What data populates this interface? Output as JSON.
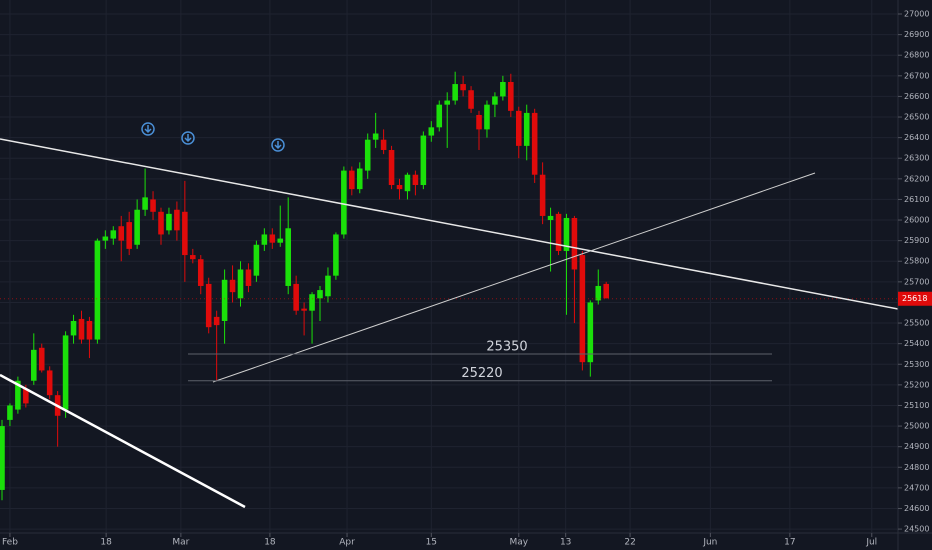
{
  "chart_data": {
    "type": "candlestick",
    "up_color": "#1be00a",
    "down_color": "#e00b0b",
    "x": [
      0,
      1,
      2,
      3,
      4,
      5,
      6,
      7,
      8,
      9,
      10,
      11,
      12,
      13,
      14,
      15,
      16,
      17,
      18,
      19,
      20,
      21,
      22,
      23,
      24,
      25,
      26,
      27,
      28,
      29,
      30,
      31,
      32,
      33,
      34,
      35,
      36,
      37,
      38,
      39,
      40,
      41,
      42,
      43,
      44,
      45,
      46,
      47,
      48,
      49,
      50,
      51,
      52,
      53,
      54,
      55,
      56,
      57,
      58,
      59,
      60,
      61,
      62,
      63,
      64,
      65,
      66,
      67,
      68,
      69,
      70,
      71,
      72,
      73,
      74,
      75,
      76
    ],
    "open": [
      24690,
      25030,
      25080,
      25180,
      25220,
      25380,
      25270,
      25150,
      25080,
      25440,
      25520,
      25510,
      25420,
      25900,
      25910,
      25970,
      25990,
      25880,
      26050,
      26100,
      26040,
      25950,
      26050,
      26040,
      25830,
      25810,
      25690,
      25530,
      25510,
      25710,
      25620,
      25760,
      25730,
      25880,
      25930,
      25890,
      25680,
      25690,
      25570,
      25560,
      25620,
      25630,
      25730,
      25930,
      26240,
      26150,
      26240,
      26390,
      26390,
      26340,
      26170,
      26140,
      26220,
      26170,
      26410,
      26450,
      26560,
      26580,
      26660,
      26630,
      26510,
      26440,
      26560,
      26600,
      26670,
      26530,
      26360,
      26520,
      26220,
      26000,
      26030,
      25850,
      26010,
      25830,
      25310,
      25610,
      25690
    ],
    "high": [
      25030,
      25110,
      25240,
      25200,
      25450,
      25400,
      25290,
      25170,
      25460,
      25540,
      25560,
      25530,
      25910,
      25950,
      25970,
      26020,
      26040,
      26100,
      26250,
      26140,
      26060,
      26060,
      26090,
      26190,
      25860,
      25830,
      25720,
      25560,
      25760,
      25780,
      25800,
      25790,
      25900,
      25960,
      25960,
      26070,
      26110,
      25730,
      25600,
      25650,
      25680,
      25770,
      25940,
      26260,
      26260,
      26280,
      26420,
      26520,
      26440,
      26360,
      26200,
      26230,
      26240,
      26430,
      26480,
      26580,
      26620,
      26720,
      26700,
      26650,
      26530,
      26580,
      26620,
      26700,
      26710,
      26550,
      26560,
      26540,
      26280,
      26060,
      26040,
      26030,
      26020,
      25850,
      25610,
      25760,
      25700
    ],
    "low": [
      24640,
      25000,
      25060,
      25090,
      25200,
      25260,
      25130,
      24900,
      25040,
      25400,
      25400,
      25330,
      25400,
      25860,
      25880,
      25800,
      25830,
      25860,
      26020,
      26000,
      25880,
      25930,
      25900,
      25700,
      25790,
      25640,
      25450,
      25220,
      25400,
      25600,
      25580,
      25650,
      25700,
      25850,
      25860,
      25870,
      25640,
      25540,
      25440,
      25400,
      25510,
      25600,
      25710,
      25910,
      26120,
      26130,
      26200,
      26350,
      26320,
      26150,
      26100,
      26100,
      26120,
      26150,
      26380,
      26430,
      26350,
      26560,
      26600,
      26520,
      26340,
      26400,
      26500,
      26580,
      26500,
      26300,
      26290,
      26180,
      25980,
      25750,
      25830,
      25540,
      25500,
      25270,
      25240,
      25590,
      25620
    ],
    "close": [
      25000,
      25100,
      25220,
      25110,
      25370,
      25270,
      25150,
      25050,
      25440,
      25510,
      25420,
      25420,
      25900,
      25920,
      25950,
      25900,
      25860,
      26050,
      26110,
      26040,
      25930,
      26030,
      25950,
      25830,
      25810,
      25680,
      25480,
      25490,
      25710,
      25650,
      25760,
      25680,
      25880,
      25930,
      25890,
      25910,
      25960,
      25560,
      25560,
      25640,
      25660,
      25730,
      25930,
      26240,
      26150,
      26250,
      26390,
      26420,
      26340,
      26170,
      26150,
      26220,
      26170,
      26410,
      26450,
      26560,
      26580,
      26660,
      26630,
      26540,
      26440,
      26560,
      26600,
      26670,
      26530,
      26360,
      26520,
      26220,
      26020,
      26020,
      25850,
      26010,
      25760,
      25310,
      25600,
      25680,
      25620
    ],
    "xlim": [
      -0.25,
      112.7
    ],
    "xticks": [
      {
        "value": 1,
        "label": "Feb"
      },
      {
        "value": 13.1,
        "label": "18"
      },
      {
        "value": 22.5,
        "label": "Mar"
      },
      {
        "value": 33.7,
        "label": "18"
      },
      {
        "value": 43.4,
        "label": "Apr"
      },
      {
        "value": 54,
        "label": "15"
      },
      {
        "value": 65,
        "label": "May"
      },
      {
        "value": 70.9,
        "label": "13"
      },
      {
        "value": 79,
        "label": "22"
      },
      {
        "value": 89.1,
        "label": "Jun"
      },
      {
        "value": 99.1,
        "label": "17"
      },
      {
        "value": 109.4,
        "label": "Jul"
      }
    ],
    "ylim": [
      24481,
      27068
    ],
    "yticks": [
      24500,
      24600,
      24700,
      24800,
      24900,
      25000,
      25100,
      25200,
      25300,
      25400,
      25500,
      25600,
      25700,
      25800,
      25900,
      26000,
      26100,
      26200,
      26300,
      26400,
      26500,
      26600,
      26700,
      26800,
      26900,
      27000
    ],
    "grid": true,
    "levels": [
      25350,
      25220
    ],
    "last_price": 25618
  }
}
